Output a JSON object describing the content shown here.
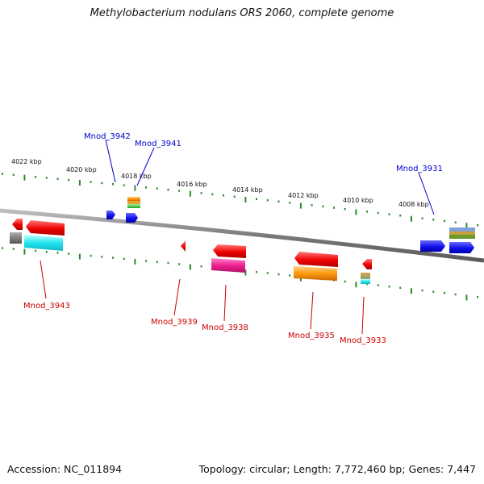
{
  "title": "Methylobacterium nodulans ORS 2060, complete genome",
  "footer": {
    "accession": "Accession: NC_011894",
    "summary": "Topology: circular; Length: 7,772,460 bp; Genes: 7,447"
  },
  "scale_labels": [
    "4022 kbp",
    "4020 kbp",
    "4018 kbp",
    "4016 kbp",
    "4014 kbp",
    "4012 kbp",
    "4010 kbp",
    "4008 kbp"
  ],
  "genes_forward": [
    {
      "name": "Mnod_3942",
      "color": "#0000cc"
    },
    {
      "name": "Mnod_3941",
      "color": "#0000cc"
    },
    {
      "name": "Mnod_3931",
      "color": "#0000cc"
    }
  ],
  "genes_reverse": [
    {
      "name": "Mnod_3943",
      "color": "#cc0000"
    },
    {
      "name": "Mnod_3939",
      "color": "#cc0000"
    },
    {
      "name": "Mnod_3938",
      "color": "#cc0000"
    },
    {
      "name": "Mnod_3935",
      "color": "#cc0000"
    },
    {
      "name": "Mnod_3933",
      "color": "#cc0000"
    }
  ],
  "colors": {
    "genome_line": "#8a8a8a",
    "tick": "#2a8a2a",
    "forward_label": "#0000cc",
    "reverse_label": "#cc0000"
  }
}
